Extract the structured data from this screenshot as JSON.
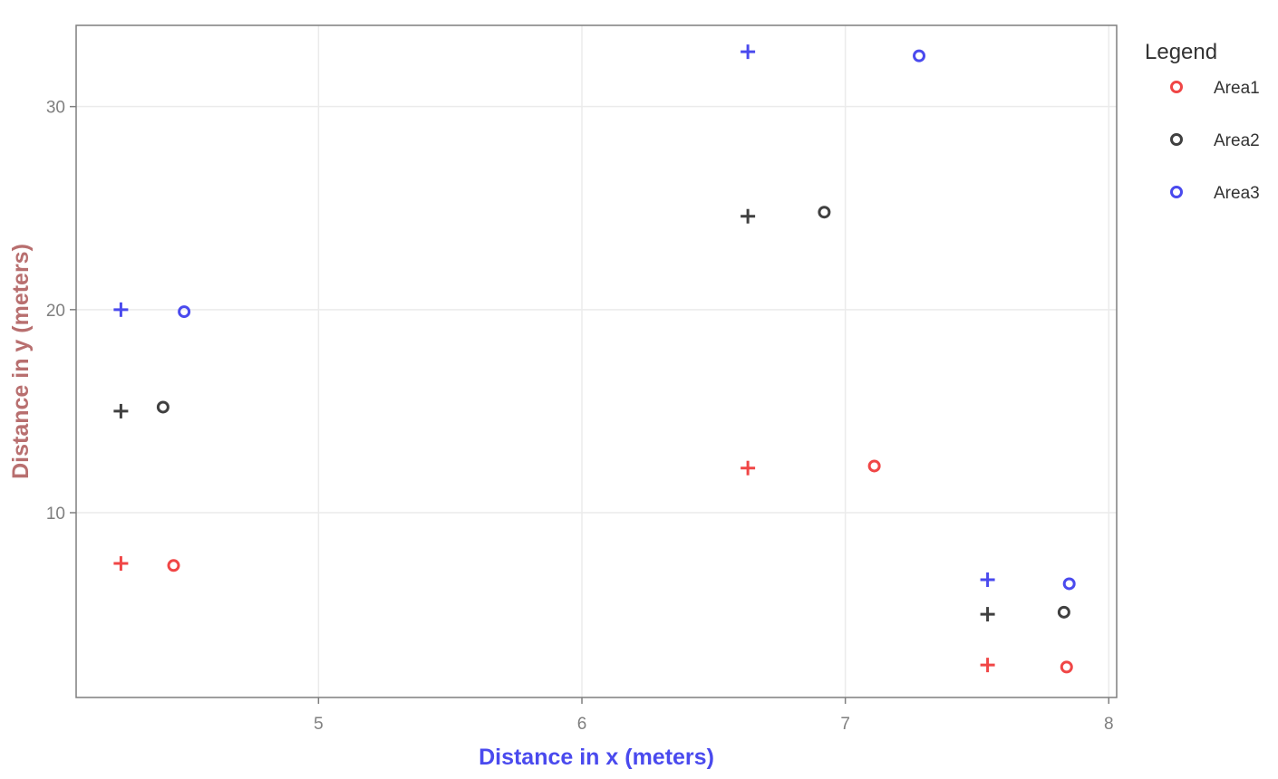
{
  "chart_data": {
    "type": "scatter",
    "xlabel": "Distance in x (meters)",
    "ylabel": "Distance in y (meters)",
    "xlim": [
      4.08,
      8.03
    ],
    "ylim": [
      0.9,
      34.0
    ],
    "x_ticks": [
      5,
      6,
      7,
      8
    ],
    "y_ticks": [
      10,
      20,
      30
    ],
    "grid": true,
    "legend": {
      "title": "Legend",
      "placement": "right",
      "entries": [
        "Area1",
        "Area2",
        "Area3"
      ]
    },
    "colors": {
      "Area1": "#f04646",
      "Area2": "#404040",
      "Area3": "#4a4aee"
    },
    "series": [
      {
        "name": "Area1",
        "circles": [
          {
            "x": 4.45,
            "y": 7.4
          },
          {
            "x": 7.11,
            "y": 12.3
          },
          {
            "x": 7.84,
            "y": 2.4
          }
        ],
        "crosses": [
          {
            "x": 4.25,
            "y": 7.5
          },
          {
            "x": 6.63,
            "y": 12.2
          },
          {
            "x": 7.54,
            "y": 2.5
          }
        ]
      },
      {
        "name": "Area2",
        "circles": [
          {
            "x": 4.41,
            "y": 15.2
          },
          {
            "x": 6.92,
            "y": 24.8
          },
          {
            "x": 7.83,
            "y": 5.1
          }
        ],
        "crosses": [
          {
            "x": 4.25,
            "y": 15.0
          },
          {
            "x": 6.63,
            "y": 24.6
          },
          {
            "x": 7.54,
            "y": 5.0
          }
        ]
      },
      {
        "name": "Area3",
        "circles": [
          {
            "x": 4.49,
            "y": 19.9
          },
          {
            "x": 7.28,
            "y": 32.5
          },
          {
            "x": 7.85,
            "y": 6.5
          }
        ],
        "crosses": [
          {
            "x": 4.25,
            "y": 20.0
          },
          {
            "x": 6.63,
            "y": 32.7
          },
          {
            "x": 7.54,
            "y": 6.7
          }
        ]
      }
    ]
  }
}
